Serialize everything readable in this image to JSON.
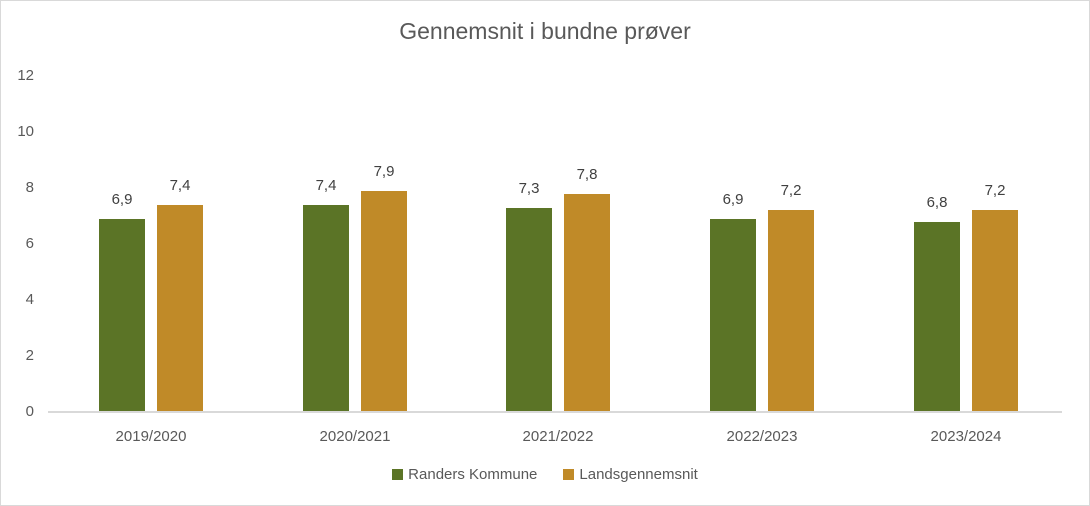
{
  "chart_data": {
    "type": "bar",
    "title": "Gennemsnit i bundne prøver",
    "xlabel": "",
    "ylabel": "",
    "ylim": [
      0,
      12
    ],
    "yticks": [
      "0",
      "2",
      "4",
      "6",
      "8",
      "10",
      "12"
    ],
    "grid": false,
    "legend_position": "bottom",
    "categories": [
      "2019/2020",
      "2020/2021",
      "2021/2022",
      "2022/2023",
      "2023/2024"
    ],
    "series": [
      {
        "name": "Randers Kommune",
        "color": "#5b7426",
        "values": [
          6.9,
          7.4,
          7.3,
          6.9,
          6.8
        ],
        "labels": [
          "6,9",
          "7,4",
          "7,3",
          "6,9",
          "6,8"
        ]
      },
      {
        "name": "Landsgennemsnit",
        "color": "#c08a28",
        "values": [
          7.4,
          7.9,
          7.8,
          7.2,
          7.2
        ],
        "labels": [
          "7,4",
          "7,9",
          "7,8",
          "7,2",
          "7,2"
        ]
      }
    ]
  }
}
